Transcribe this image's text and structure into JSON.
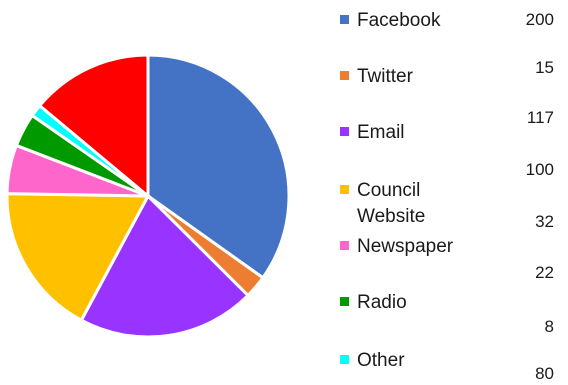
{
  "chart_data": {
    "type": "pie",
    "slices": [
      {
        "label": "Facebook",
        "value": 200,
        "color": "#4472C4"
      },
      {
        "label": "Twitter",
        "value": 15,
        "color": "#ED7D31"
      },
      {
        "label": "Email",
        "value": 117,
        "color": "#9933FF"
      },
      {
        "label": "Council Website",
        "value": 100,
        "color": "#FFC000"
      },
      {
        "label": "Newspaper",
        "value": 32,
        "color": "#FF66CC"
      },
      {
        "label": "Radio",
        "value": 22,
        "color": "#009900"
      },
      {
        "label": "Other",
        "value": 8,
        "color": "#00FFFF"
      },
      {
        "label": "",
        "value": 80,
        "color": "#FF0000"
      }
    ],
    "legend_position": "right",
    "title": ""
  }
}
